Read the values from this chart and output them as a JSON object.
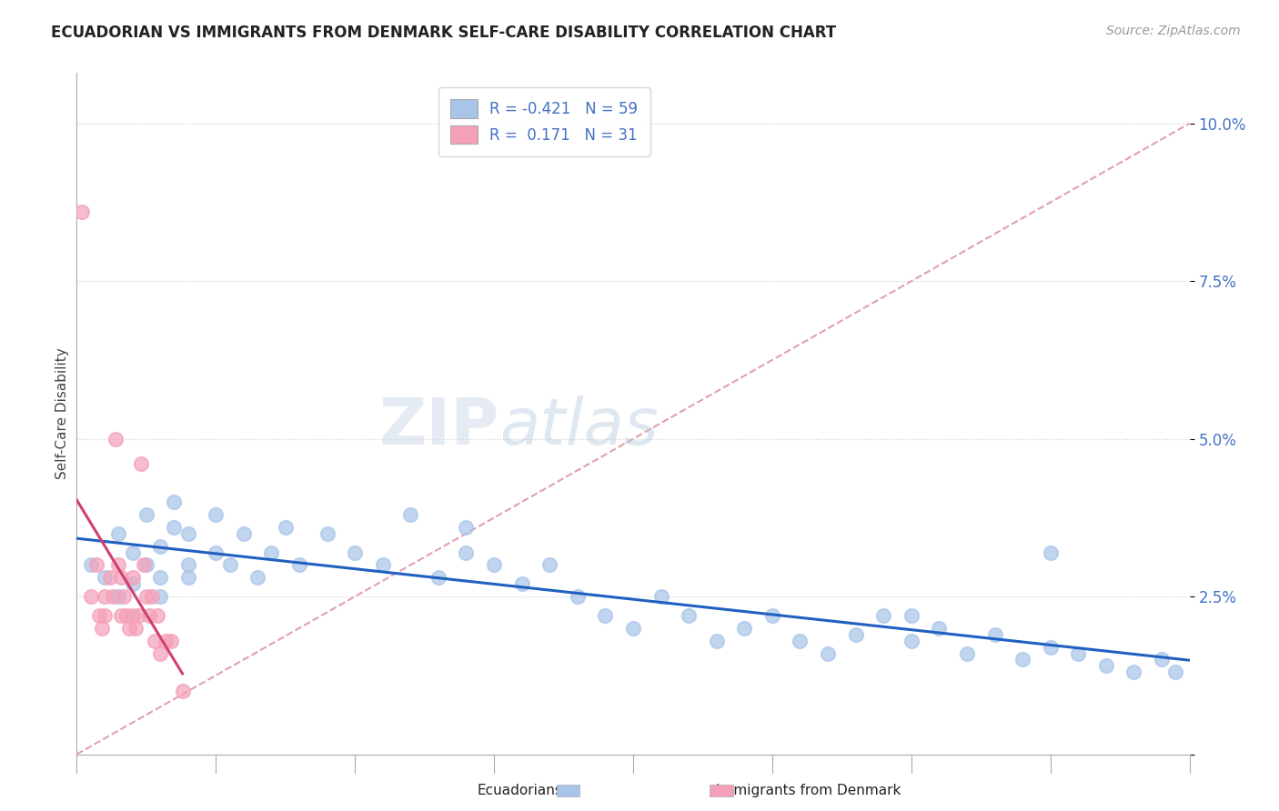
{
  "title": "ECUADORIAN VS IMMIGRANTS FROM DENMARK SELF-CARE DISABILITY CORRELATION CHART",
  "source": "Source: ZipAtlas.com",
  "ylabel": "Self-Care Disability",
  "yticks": [
    0.0,
    0.025,
    0.05,
    0.075,
    0.1
  ],
  "ytick_labels": [
    "",
    "2.5%",
    "5.0%",
    "7.5%",
    "10.0%"
  ],
  "xlim": [
    0.0,
    0.4
  ],
  "ylim": [
    0.0,
    0.108
  ],
  "r_blue": -0.421,
  "n_blue": 59,
  "r_pink": 0.171,
  "n_pink": 31,
  "blue_color": "#a8c4e8",
  "pink_color": "#f4a0b8",
  "blue_line_color": "#2060c0",
  "pink_line_color": "#d04070",
  "ref_line_color": "#e0a0b0",
  "blue_scatter_x": [
    0.005,
    0.01,
    0.015,
    0.015,
    0.02,
    0.02,
    0.025,
    0.025,
    0.03,
    0.03,
    0.03,
    0.035,
    0.035,
    0.04,
    0.04,
    0.04,
    0.05,
    0.05,
    0.055,
    0.06,
    0.065,
    0.07,
    0.075,
    0.08,
    0.09,
    0.1,
    0.11,
    0.12,
    0.13,
    0.14,
    0.14,
    0.15,
    0.16,
    0.17,
    0.18,
    0.19,
    0.2,
    0.21,
    0.22,
    0.23,
    0.24,
    0.25,
    0.26,
    0.27,
    0.28,
    0.29,
    0.3,
    0.31,
    0.32,
    0.33,
    0.34,
    0.35,
    0.36,
    0.37,
    0.38,
    0.39,
    0.395,
    0.35,
    0.3
  ],
  "blue_scatter_y": [
    0.03,
    0.028,
    0.035,
    0.025,
    0.032,
    0.027,
    0.03,
    0.038,
    0.033,
    0.028,
    0.025,
    0.036,
    0.04,
    0.03,
    0.035,
    0.028,
    0.032,
    0.038,
    0.03,
    0.035,
    0.028,
    0.032,
    0.036,
    0.03,
    0.035,
    0.032,
    0.03,
    0.038,
    0.028,
    0.032,
    0.036,
    0.03,
    0.027,
    0.03,
    0.025,
    0.022,
    0.02,
    0.025,
    0.022,
    0.018,
    0.02,
    0.022,
    0.018,
    0.016,
    0.019,
    0.022,
    0.018,
    0.02,
    0.016,
    0.019,
    0.015,
    0.017,
    0.016,
    0.014,
    0.013,
    0.015,
    0.013,
    0.032,
    0.022
  ],
  "pink_scatter_x": [
    0.002,
    0.005,
    0.007,
    0.008,
    0.009,
    0.01,
    0.01,
    0.012,
    0.013,
    0.014,
    0.015,
    0.016,
    0.016,
    0.017,
    0.018,
    0.019,
    0.02,
    0.02,
    0.021,
    0.022,
    0.023,
    0.024,
    0.025,
    0.026,
    0.027,
    0.028,
    0.029,
    0.03,
    0.032,
    0.034,
    0.038
  ],
  "pink_scatter_y": [
    0.086,
    0.025,
    0.03,
    0.022,
    0.02,
    0.022,
    0.025,
    0.028,
    0.025,
    0.05,
    0.03,
    0.028,
    0.022,
    0.025,
    0.022,
    0.02,
    0.022,
    0.028,
    0.02,
    0.022,
    0.046,
    0.03,
    0.025,
    0.022,
    0.025,
    0.018,
    0.022,
    0.016,
    0.018,
    0.018,
    0.01
  ]
}
